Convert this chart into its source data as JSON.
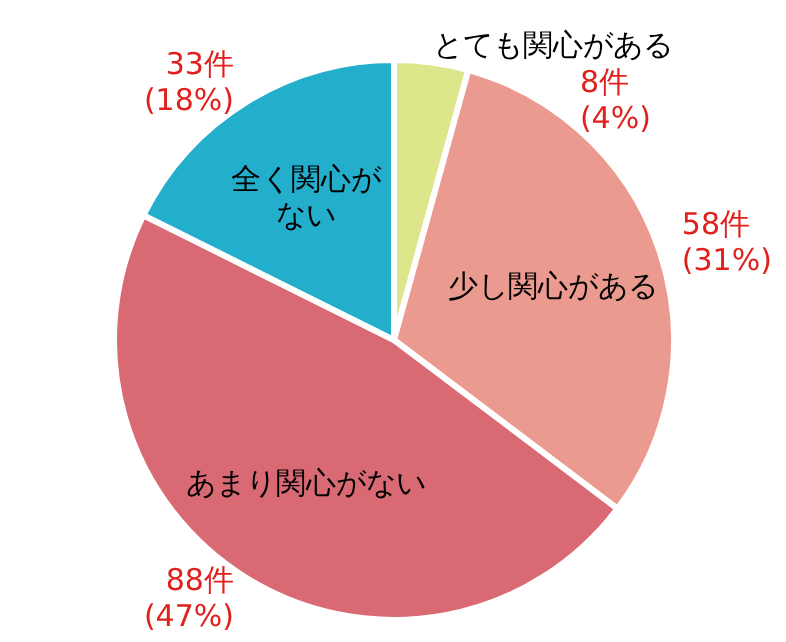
{
  "chart_data": {
    "type": "pie",
    "categories": [
      "とても関心がある",
      "少し関心がある",
      "あまり関心がない",
      "全く関心がない"
    ],
    "values": [
      8,
      58,
      88,
      33
    ],
    "colors": [
      "#dde68a",
      "#eb9a90",
      "#d96a74",
      "#23aecb"
    ],
    "value_labels": [
      "8件 (4%)",
      "58件 (31%)",
      "88件 (47%)",
      "33件 (18%)"
    ]
  }
}
